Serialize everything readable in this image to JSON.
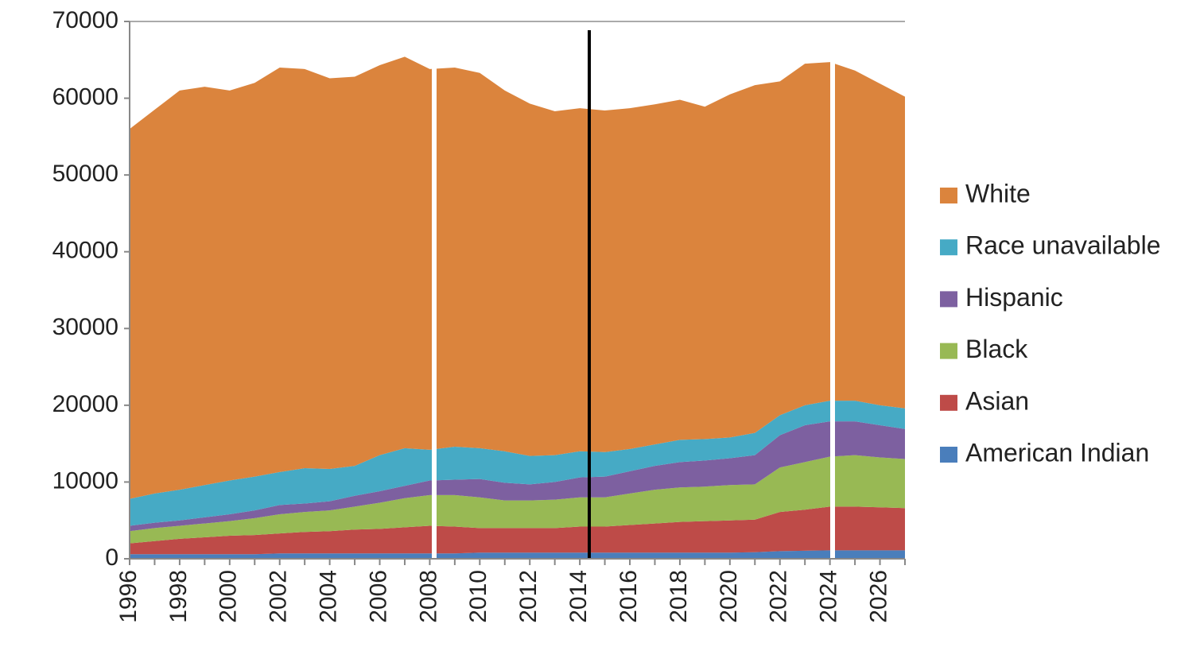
{
  "chart_data": {
    "type": "area",
    "stacked": true,
    "x": [
      1996,
      1997,
      1998,
      1999,
      2000,
      2001,
      2002,
      2003,
      2004,
      2005,
      2006,
      2007,
      2008,
      2009,
      2010,
      2011,
      2012,
      2013,
      2014,
      2015,
      2016,
      2017,
      2018,
      2019,
      2020,
      2021,
      2022,
      2023,
      2024,
      2025,
      2026,
      2027
    ],
    "xlim": [
      1996,
      2027
    ],
    "xticks": [
      1996,
      1998,
      2000,
      2002,
      2004,
      2006,
      2008,
      2010,
      2012,
      2014,
      2016,
      2018,
      2020,
      2022,
      2024,
      2026
    ],
    "ylim": [
      0,
      70000
    ],
    "yticks": [
      0,
      10000,
      20000,
      30000,
      40000,
      50000,
      60000,
      70000
    ],
    "grid": false,
    "legend": "right",
    "series": [
      {
        "name": "American Indian",
        "color": "#4a7ebb",
        "values": [
          600,
          600,
          600,
          600,
          600,
          600,
          700,
          700,
          700,
          700,
          700,
          700,
          700,
          700,
          800,
          800,
          800,
          800,
          800,
          800,
          800,
          800,
          800,
          800,
          800,
          850,
          1000,
          1050,
          1100,
          1100,
          1100,
          1100
        ]
      },
      {
        "name": "Asian",
        "color": "#be4b48",
        "values": [
          1400,
          1700,
          2000,
          2200,
          2400,
          2500,
          2600,
          2800,
          2900,
          3100,
          3200,
          3400,
          3600,
          3500,
          3200,
          3200,
          3200,
          3200,
          3400,
          3400,
          3600,
          3800,
          4000,
          4100,
          4200,
          4250,
          5100,
          5350,
          5700,
          5700,
          5600,
          5500
        ]
      },
      {
        "name": "Black",
        "color": "#98b954",
        "values": [
          1600,
          1700,
          1700,
          1800,
          1900,
          2200,
          2500,
          2600,
          2700,
          3000,
          3400,
          3800,
          4000,
          4100,
          4000,
          3600,
          3600,
          3700,
          3800,
          3800,
          4100,
          4400,
          4500,
          4500,
          4600,
          4600,
          5800,
          6200,
          6500,
          6700,
          6500,
          6400
        ]
      },
      {
        "name": "Hispanic",
        "color": "#7d60a0",
        "values": [
          700,
          700,
          700,
          800,
          900,
          1000,
          1200,
          1100,
          1200,
          1400,
          1500,
          1600,
          1900,
          2000,
          2400,
          2300,
          2100,
          2300,
          2600,
          2700,
          2900,
          3100,
          3300,
          3400,
          3500,
          3800,
          4200,
          4800,
          4600,
          4400,
          4200,
          3900
        ]
      },
      {
        "name": "Race unavailable",
        "color": "#46aac5",
        "values": [
          3500,
          3800,
          4000,
          4200,
          4400,
          4400,
          4300,
          4600,
          4200,
          3900,
          4700,
          4900,
          4000,
          4300,
          4000,
          4100,
          3700,
          3500,
          3400,
          3200,
          2900,
          2800,
          2900,
          2800,
          2700,
          2900,
          2600,
          2600,
          2700,
          2700,
          2600,
          2700
        ]
      },
      {
        "name": "White",
        "color": "#db843d",
        "values": [
          48200,
          50000,
          52000,
          51900,
          50800,
          51300,
          52700,
          52000,
          50900,
          50700,
          50800,
          51000,
          49600,
          49400,
          48900,
          47000,
          45900,
          44800,
          44700,
          44500,
          44400,
          44300,
          44300,
          43300,
          44700,
          45300,
          43500,
          44500,
          44100,
          43000,
          41900,
          40600
        ]
      }
    ]
  }
}
